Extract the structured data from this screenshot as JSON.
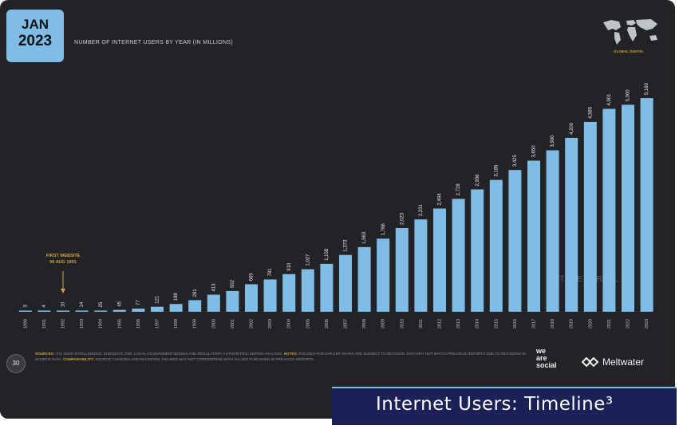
{
  "header": {
    "badge_month": "JAN",
    "badge_year": "2023",
    "chart_title": "NUMBER OF INTERNET USERS BY YEAR (IN MILLIONS)",
    "brand_label": "GLOBAL DIGITAL",
    "watermark": "DATAREPORTAL"
  },
  "annotation": {
    "line1": "FIRST WEBSITE",
    "line2": "06 AUG 1991",
    "year_index": 2
  },
  "footer": {
    "page_number": "30",
    "sources_label": "SOURCES:",
    "sources_text": "ITU; GSMA INTELLIGENCE; EUROSTAT; GWI; LOCAL GOVERNMENT BODIES AND REGULATORY AUTHORITIES; KEPIOS ANALYSIS.",
    "notes_label": "NOTES:",
    "notes_text": "FIGURES FOR EARLIER YEARS ARE SUBJECT TO REVISION. DATA MAY NOT MATCH PREVIOUS REPORTS DUE TO REVISIONS IN SOURCE DATA.",
    "comparability_label": "COMPARABILITY:",
    "comparability_text": "SOURCE CHANGES AND REVISIONS. FIGURES MAY NOT CORRESPOND WITH VALUES PUBLISHED IN PREVIOUS REPORTS.",
    "brand_we": "we",
    "brand_are": "are",
    "brand_social": "social",
    "brand_meltwater": "Meltwater"
  },
  "banner": {
    "title": "Internet Users: Timeline³"
  },
  "colors": {
    "background": "#222326",
    "bar": "#7fbde6",
    "accent": "#d6a13a",
    "banner": "#1b2057"
  },
  "chart_data": {
    "type": "bar",
    "title": "NUMBER OF INTERNET USERS BY YEAR (IN MILLIONS)",
    "categories": [
      "1990",
      "1991",
      "1992",
      "1993",
      "1994",
      "1995",
      "1996",
      "1997",
      "1998",
      "1999",
      "2000",
      "2001",
      "2002",
      "2003",
      "2004",
      "2005",
      "2006",
      "2007",
      "2008",
      "2009",
      "2010",
      "2011",
      "2012",
      "2013",
      "2014",
      "2015",
      "2016",
      "2017",
      "2018",
      "2019",
      "2020",
      "2021",
      "2022",
      "2023"
    ],
    "values": [
      3,
      4,
      10,
      14,
      25,
      45,
      77,
      121,
      188,
      281,
      413,
      502,
      665,
      781,
      910,
      1027,
      1158,
      1373,
      1563,
      1766,
      2023,
      2231,
      2494,
      2728,
      2956,
      3185,
      3425,
      3650,
      3900,
      4200,
      4585,
      4901,
      5000,
      5160
    ],
    "value_labels": [
      "3",
      "4",
      "10",
      "14",
      "25",
      "45",
      "77",
      "121",
      "188",
      "281",
      "413",
      "502",
      "665",
      "781",
      "910",
      "1,027",
      "1,158",
      "1,373",
      "1,563",
      "1,766",
      "2,023",
      "2,231",
      "2,494",
      "2,728",
      "2,956",
      "3,185",
      "3,425",
      "3,650",
      "3,900",
      "4,200",
      "4,585",
      "4,901",
      "5,000",
      "5,160"
    ],
    "ylim": [
      0,
      5200
    ],
    "xlabel": "",
    "ylabel": "",
    "grid": false,
    "legend": "none"
  }
}
